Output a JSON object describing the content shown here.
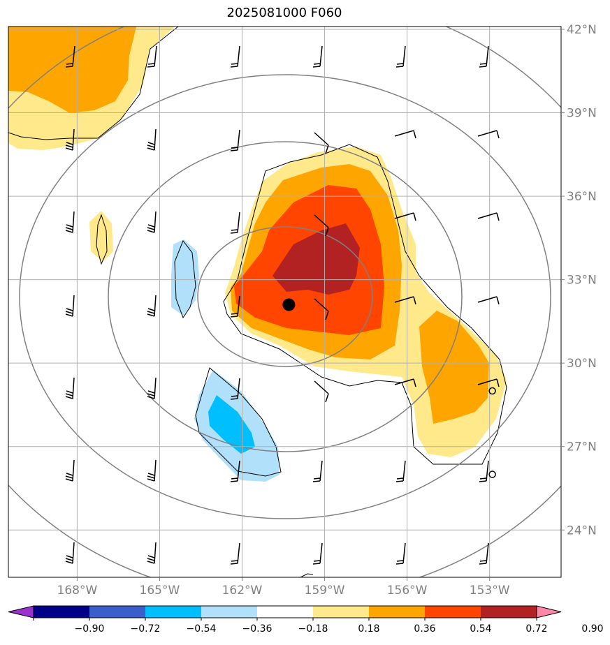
{
  "title": "2025081000 F060",
  "axes": {
    "lon_ticks": [
      {
        "value": -168,
        "label": "168°W"
      },
      {
        "value": -165,
        "label": "165°W"
      },
      {
        "value": -162,
        "label": "162°W"
      },
      {
        "value": -159,
        "label": "159°W"
      },
      {
        "value": -156,
        "label": "156°W"
      },
      {
        "value": -153,
        "label": "153°W"
      }
    ],
    "lat_ticks": [
      {
        "value": 24,
        "label": "24°N"
      },
      {
        "value": 27,
        "label": "27°N"
      },
      {
        "value": 30,
        "label": "30°N"
      },
      {
        "value": 33,
        "label": "33°N"
      },
      {
        "value": 36,
        "label": "36°N"
      },
      {
        "value": 39,
        "label": "39°N"
      },
      {
        "value": 42,
        "label": "42°N"
      }
    ],
    "lon_range": [
      -170.5,
      -150.4
    ],
    "lat_range": [
      22.3,
      42.1
    ],
    "grid": true
  },
  "colorbar": {
    "labels": [
      "−0.90",
      "−0.72",
      "−0.54",
      "−0.36",
      "−0.18",
      "0.18",
      "0.36",
      "0.54",
      "0.72",
      "0.90"
    ],
    "under_color": "#9932cc",
    "over_color": "#ff88aa",
    "colors": [
      "#00008b",
      "#3a5fcd",
      "#00bfff",
      "#b0e0fa",
      "#ffffff",
      "#ffe98a",
      "#ffa500",
      "#ff4500",
      "#b22222"
    ],
    "extend": "both"
  },
  "center_marker": {
    "lon": -160.3,
    "lat": 32.1
  },
  "station_markers": [
    {
      "lon": -152.9,
      "lat": 29.0
    },
    {
      "lon": -152.9,
      "lat": 26.0
    }
  ]
}
